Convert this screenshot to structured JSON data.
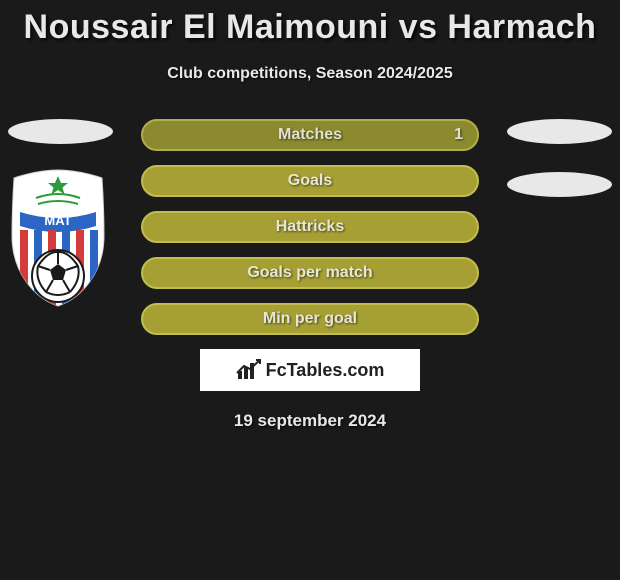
{
  "title": "Noussair El Maimouni vs Harmach",
  "subtitle": "Club competitions, Season 2024/2025",
  "date": "19 september 2024",
  "brand": "FcTables.com",
  "bars": [
    {
      "label": "Matches",
      "value": "1",
      "bg": "#8c8a2e",
      "border": "#b0ae4a",
      "text": "#e0e0d0"
    },
    {
      "label": "Goals",
      "value": "",
      "bg": "#a6a034",
      "border": "#c2bd4e",
      "text": "#e8e6d6"
    },
    {
      "label": "Hattricks",
      "value": "",
      "bg": "#a6a034",
      "border": "#c2bd4e",
      "text": "#e8e6d6"
    },
    {
      "label": "Goals per match",
      "value": "",
      "bg": "#a6a034",
      "border": "#c2bd4e",
      "text": "#e8e6d6"
    },
    {
      "label": "Min per goal",
      "value": "",
      "bg": "#a6a034",
      "border": "#c2bd4e",
      "text": "#e8e6d6"
    }
  ],
  "badge": {
    "outer_fill": "#ffffff",
    "stripe_red": "#d43b3b",
    "stripe_blue": "#2b66c4",
    "star_color": "#2d9b3a",
    "band_color": "#2b66c4",
    "ball_bg": "#ffffff",
    "ball_patch": "#1a1a1a"
  },
  "brand_colors": {
    "box_bg": "#ffffff",
    "text": "#222222"
  }
}
